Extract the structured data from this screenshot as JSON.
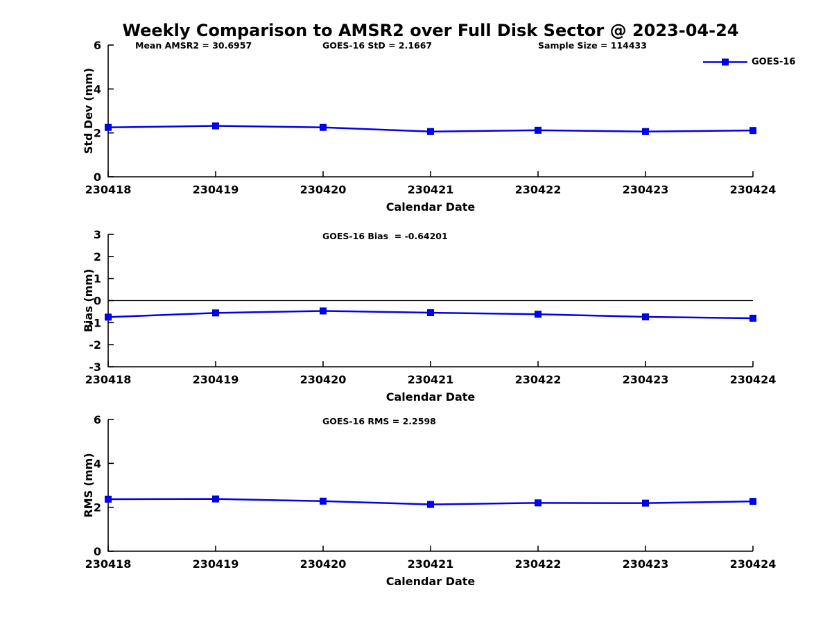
{
  "title": "Weekly Comparison to AMSR2 over Full Disk Sector @ 2023-04-24",
  "colors": {
    "line": "#0000EE",
    "marker_fill": "#0000FF",
    "marker_edge": "#0000C0",
    "axis": "#000000",
    "text": "#000000",
    "background": "#FFFFFF"
  },
  "legend": {
    "label": "GOES-16",
    "position": "top-right"
  },
  "chart_data": [
    {
      "id": "stddev",
      "type": "line",
      "title": "",
      "annotations": [
        "Mean AMSR2 = 30.6957",
        "GOES-16 StD = 2.1667",
        "Sample Size = 114433"
      ],
      "xlabel": "Calendar Date",
      "ylabel": "Std Dev (mm)",
      "categories": [
        "230418",
        "230419",
        "230420",
        "230421",
        "230422",
        "230423",
        "230424"
      ],
      "series": [
        {
          "name": "GOES-16",
          "values": [
            2.25,
            2.32,
            2.25,
            2.06,
            2.12,
            2.06,
            2.11
          ]
        }
      ],
      "ylim": [
        0,
        6
      ],
      "yticks": [
        0,
        2,
        4,
        6
      ],
      "zero_line": false,
      "grid": false,
      "legend_position": "top-right-outside"
    },
    {
      "id": "bias",
      "type": "line",
      "title": "GOES-16 Bias  = -0.64201",
      "annotations": [],
      "xlabel": "Calendar Date",
      "ylabel": "Bias (mm)",
      "categories": [
        "230418",
        "230419",
        "230420",
        "230421",
        "230422",
        "230423",
        "230424"
      ],
      "series": [
        {
          "name": "GOES-16",
          "values": [
            -0.75,
            -0.56,
            -0.47,
            -0.55,
            -0.62,
            -0.74,
            -0.8
          ]
        }
      ],
      "ylim": [
        -3,
        3
      ],
      "yticks": [
        -3,
        -2,
        -1,
        0,
        1,
        2,
        3
      ],
      "zero_line": true,
      "grid": false
    },
    {
      "id": "rms",
      "type": "line",
      "title": "GOES-16 RMS = 2.2598",
      "annotations": [],
      "xlabel": "Calendar Date",
      "ylabel": "RMS (mm)",
      "categories": [
        "230418",
        "230419",
        "230420",
        "230421",
        "230422",
        "230423",
        "230424"
      ],
      "series": [
        {
          "name": "GOES-16",
          "values": [
            2.37,
            2.38,
            2.28,
            2.13,
            2.2,
            2.19,
            2.27
          ]
        }
      ],
      "ylim": [
        0,
        6
      ],
      "yticks": [
        0,
        2,
        4,
        6
      ],
      "zero_line": false,
      "grid": false
    }
  ]
}
